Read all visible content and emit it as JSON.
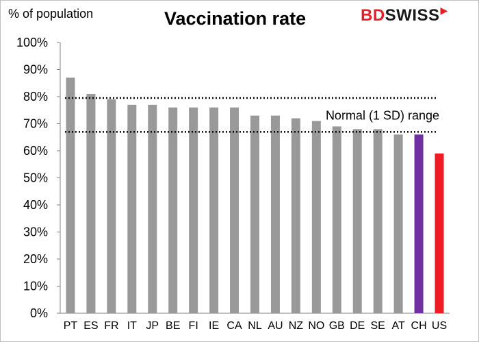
{
  "title": "Vaccination rate",
  "ylabel": "% of population",
  "logo": {
    "part1": "BD",
    "part2": "SWISS"
  },
  "colors": {
    "default": "#999999",
    "highlight_ch": "#7030a0",
    "highlight_us": "#ee1c25",
    "band_line": "#000000"
  },
  "chart_data": {
    "type": "bar",
    "title": "Vaccination rate",
    "ylabel": "% of population",
    "xlabel": "",
    "categories": [
      "PT",
      "ES",
      "FR",
      "IT",
      "JP",
      "BE",
      "FI",
      "IE",
      "CA",
      "NL",
      "AU",
      "NZ",
      "NO",
      "GB",
      "DE",
      "SE",
      "AT",
      "CH",
      "US"
    ],
    "values": [
      87,
      81,
      79,
      77,
      77,
      76,
      76,
      76,
      76,
      73,
      73,
      72,
      71,
      69,
      68,
      68,
      66,
      66,
      59
    ],
    "bar_colors": [
      "#999999",
      "#999999",
      "#999999",
      "#999999",
      "#999999",
      "#999999",
      "#999999",
      "#999999",
      "#999999",
      "#999999",
      "#999999",
      "#999999",
      "#999999",
      "#999999",
      "#999999",
      "#999999",
      "#999999",
      "#7030a0",
      "#ee1c25"
    ],
    "ylim": [
      0,
      100
    ],
    "yticks": [
      0,
      10,
      20,
      30,
      40,
      50,
      60,
      70,
      80,
      90,
      100
    ],
    "ytick_labels": [
      "0%",
      "10%",
      "20%",
      "30%",
      "40%",
      "50%",
      "60%",
      "70%",
      "80%",
      "90%",
      "100%"
    ],
    "grid": false,
    "band": {
      "label": "Normal (1 SD) range",
      "upper": 79.5,
      "lower": 67
    }
  }
}
